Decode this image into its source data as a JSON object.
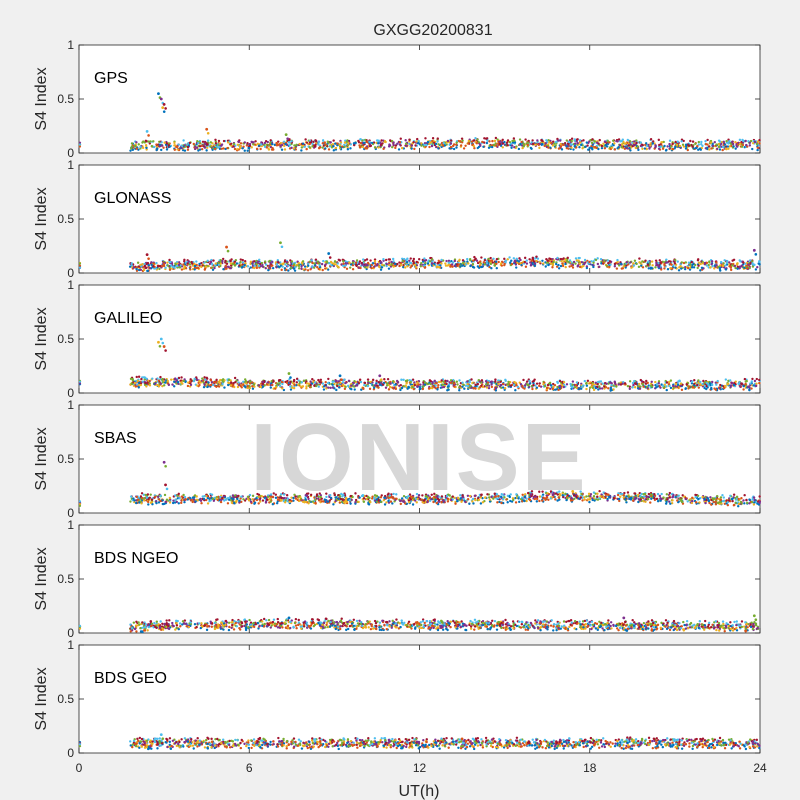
{
  "figure": {
    "title": "GXGG20200831",
    "watermark": "IONISE",
    "xlabel": "UT(h)",
    "x_ticks": [
      "0",
      "6",
      "12",
      "18",
      "24"
    ],
    "y_ticks": [
      "0",
      "0.5",
      "1"
    ]
  },
  "series_colors": [
    "#0072BD",
    "#D95319",
    "#EDB120",
    "#7E2F8E",
    "#77AC30",
    "#4DBEEE",
    "#A2142F"
  ],
  "chart_data": [
    {
      "type": "scatter",
      "panel_label": "GPS",
      "ylabel": "S4 Index",
      "xlim": [
        0,
        24
      ],
      "ylim": [
        0,
        1
      ],
      "baseline": [
        {
          "x": 0,
          "y": 0.07
        },
        {
          "x": 2,
          "y": 0.07
        },
        {
          "x": 6,
          "y": 0.07
        },
        {
          "x": 10,
          "y": 0.08
        },
        {
          "x": 14,
          "y": 0.09
        },
        {
          "x": 18,
          "y": 0.08
        },
        {
          "x": 22,
          "y": 0.07
        },
        {
          "x": 24,
          "y": 0.08
        }
      ],
      "spikes": [
        {
          "x": 2.8,
          "y": 0.55
        },
        {
          "x": 2.9,
          "y": 0.5
        },
        {
          "x": 3.0,
          "y": 0.45
        },
        {
          "x": 2.95,
          "y": 0.42
        },
        {
          "x": 2.4,
          "y": 0.2
        },
        {
          "x": 4.5,
          "y": 0.22
        },
        {
          "x": 7.3,
          "y": 0.17
        }
      ]
    },
    {
      "type": "scatter",
      "panel_label": "GLONASS",
      "ylabel": "S4 Index",
      "xlim": [
        0,
        24
      ],
      "ylim": [
        0,
        1
      ],
      "baseline": [
        {
          "x": 0,
          "y": 0.07
        },
        {
          "x": 2,
          "y": 0.06
        },
        {
          "x": 5,
          "y": 0.08
        },
        {
          "x": 8,
          "y": 0.07
        },
        {
          "x": 12,
          "y": 0.09
        },
        {
          "x": 16,
          "y": 0.1
        },
        {
          "x": 20,
          "y": 0.08
        },
        {
          "x": 24,
          "y": 0.07
        }
      ],
      "spikes": [
        {
          "x": 5.2,
          "y": 0.24
        },
        {
          "x": 7.1,
          "y": 0.28
        },
        {
          "x": 8.8,
          "y": 0.18
        },
        {
          "x": 23.8,
          "y": 0.21
        },
        {
          "x": 2.4,
          "y": 0.17
        }
      ]
    },
    {
      "type": "scatter",
      "panel_label": "GALILEO",
      "ylabel": "S4 Index",
      "xlim": [
        0,
        24
      ],
      "ylim": [
        0,
        1
      ],
      "baseline": [
        {
          "x": 0,
          "y": 0.09
        },
        {
          "x": 2,
          "y": 0.1
        },
        {
          "x": 4,
          "y": 0.1
        },
        {
          "x": 7,
          "y": 0.08
        },
        {
          "x": 12,
          "y": 0.08
        },
        {
          "x": 18,
          "y": 0.07
        },
        {
          "x": 24,
          "y": 0.08
        }
      ],
      "spikes": [
        {
          "x": 2.8,
          "y": 0.47
        },
        {
          "x": 2.9,
          "y": 0.5
        },
        {
          "x": 3.0,
          "y": 0.43
        },
        {
          "x": 7.4,
          "y": 0.18
        },
        {
          "x": 9.2,
          "y": 0.16
        },
        {
          "x": 10.6,
          "y": 0.16
        }
      ]
    },
    {
      "type": "scatter",
      "panel_label": "SBAS",
      "ylabel": "S4 Index",
      "xlim": [
        0,
        24
      ],
      "ylim": [
        0,
        1
      ],
      "baseline": [
        {
          "x": 0,
          "y": 0.09
        },
        {
          "x": 2,
          "y": 0.13
        },
        {
          "x": 8,
          "y": 0.13
        },
        {
          "x": 14,
          "y": 0.13
        },
        {
          "x": 17,
          "y": 0.16
        },
        {
          "x": 24,
          "y": 0.11
        }
      ],
      "spikes": [
        {
          "x": 3.0,
          "y": 0.47
        },
        {
          "x": 3.05,
          "y": 0.26
        },
        {
          "x": 17.4,
          "y": 0.2
        }
      ]
    },
    {
      "type": "scatter",
      "panel_label": "BDS NGEO",
      "ylabel": "S4 Index",
      "xlim": [
        0,
        24
      ],
      "ylim": [
        0,
        1
      ],
      "baseline": [
        {
          "x": 0,
          "y": 0.05
        },
        {
          "x": 2,
          "y": 0.06
        },
        {
          "x": 6,
          "y": 0.08
        },
        {
          "x": 12,
          "y": 0.08
        },
        {
          "x": 18,
          "y": 0.07
        },
        {
          "x": 24,
          "y": 0.06
        }
      ],
      "spikes": [
        {
          "x": 23.8,
          "y": 0.16
        },
        {
          "x": 7.4,
          "y": 0.14
        },
        {
          "x": 19.2,
          "y": 0.14
        }
      ]
    },
    {
      "type": "scatter",
      "panel_label": "BDS GEO",
      "ylabel": "S4 Index",
      "xlim": [
        0,
        24
      ],
      "ylim": [
        0,
        1
      ],
      "baseline": [
        {
          "x": 0,
          "y": 0.08
        },
        {
          "x": 2,
          "y": 0.09
        },
        {
          "x": 12,
          "y": 0.09
        },
        {
          "x": 24,
          "y": 0.09
        }
      ],
      "spikes": [
        {
          "x": 2.9,
          "y": 0.17
        },
        {
          "x": 13.5,
          "y": 0.13
        }
      ]
    }
  ]
}
